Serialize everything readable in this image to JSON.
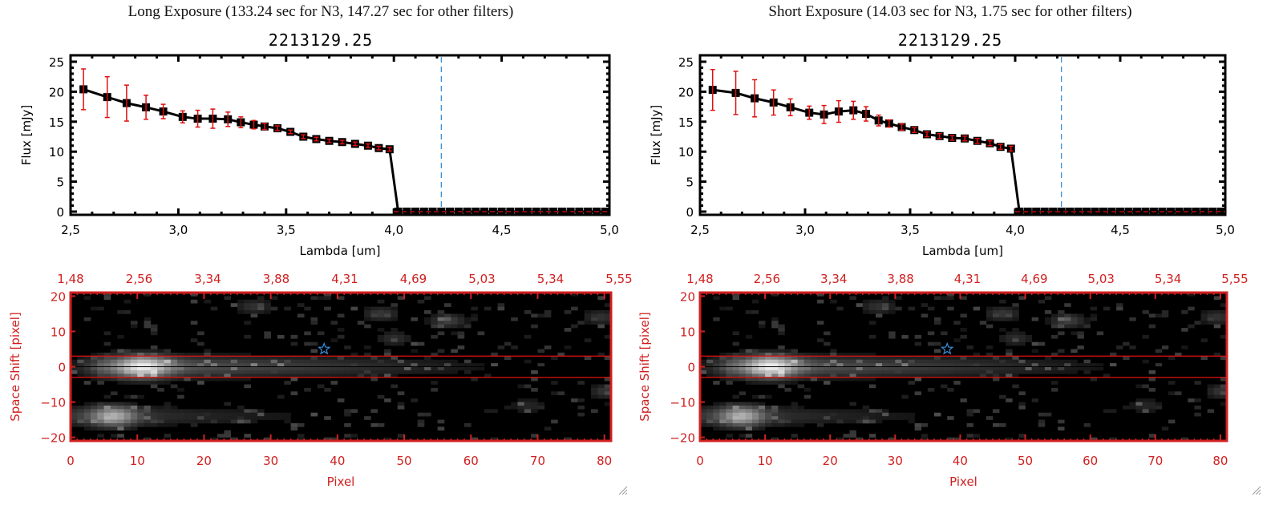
{
  "panels": [
    {
      "exposure_title": "Long Exposure (133.24 sec for N3, 147.27 sec for other filters)",
      "object_title": "2213129.25"
    },
    {
      "exposure_title": "Short Exposure (14.03 sec for N3, 1.75 sec for other filters)",
      "object_title": "2213129.25"
    }
  ],
  "colors": {
    "line": "#000000",
    "errorbar": "#e01010",
    "cutoff_marker": "#3a8fde",
    "zero_line": "#e01010",
    "image_axis": "#d02020",
    "star": "#3a8fde"
  },
  "chart_data": [
    {
      "type": "line",
      "title": "2213129.25",
      "subtitle": "Long Exposure (133.24 sec for N3, 147.27 sec for other filters)",
      "xlabel": "Lambda [um]",
      "ylabel": "Flux [mJy]",
      "xlim": [
        2.5,
        5.0
      ],
      "ylim": [
        0,
        25
      ],
      "xticks": [
        "2.5",
        "3.0",
        "3.5",
        "4.0",
        "4.5",
        "5.0"
      ],
      "yticks": [
        "0",
        "5",
        "10",
        "15",
        "20",
        "25"
      ],
      "vline_x": 4.22,
      "series": [
        {
          "name": "Flux",
          "x": [
            2.56,
            2.67,
            2.76,
            2.85,
            2.93,
            3.02,
            3.09,
            3.16,
            3.23,
            3.29,
            3.35,
            3.4,
            3.46,
            3.52,
            3.58,
            3.64,
            3.7,
            3.76,
            3.82,
            3.88,
            3.93,
            3.98,
            4.02,
            4.06,
            4.1,
            4.14,
            4.18,
            4.22,
            4.26,
            4.3,
            4.34,
            4.38,
            4.42,
            4.46,
            4.5,
            4.54,
            4.58,
            4.62,
            4.66,
            4.7,
            4.74,
            4.78,
            4.82,
            4.86,
            4.9,
            4.94,
            4.98
          ],
          "y": [
            20.4,
            19.1,
            18.1,
            17.4,
            16.7,
            15.8,
            15.5,
            15.5,
            15.4,
            14.9,
            14.5,
            14.2,
            13.9,
            13.3,
            12.5,
            12.1,
            11.8,
            11.6,
            11.3,
            11.0,
            10.6,
            10.4,
            0,
            0,
            0,
            0,
            0,
            0,
            0,
            0,
            0,
            0,
            0,
            0,
            0,
            0,
            0,
            0,
            0,
            0,
            0,
            0,
            0,
            0,
            0,
            0,
            0
          ],
          "yerr": [
            3.4,
            3.4,
            3.0,
            2.0,
            1.2,
            1.0,
            1.4,
            1.6,
            1.2,
            0.9,
            0.7,
            0.5,
            0.4,
            0.3,
            0.3,
            0.3,
            0.3,
            0.3,
            0.3,
            0.3,
            0.3,
            0.3,
            0,
            0,
            0,
            0,
            0,
            0,
            0,
            0,
            0,
            0,
            0,
            0,
            0,
            0,
            0,
            0,
            0,
            0,
            0,
            0,
            0,
            0,
            0,
            0,
            0
          ]
        }
      ]
    },
    {
      "type": "line",
      "title": "2213129.25",
      "subtitle": "Short Exposure (14.03 sec for N3, 1.75 sec for other filters)",
      "xlabel": "Lambda [um]",
      "ylabel": "Flux [mJy]",
      "xlim": [
        2.5,
        5.0
      ],
      "ylim": [
        0,
        25
      ],
      "xticks": [
        "2.5",
        "3.0",
        "3.5",
        "4.0",
        "4.5",
        "5.0"
      ],
      "yticks": [
        "0",
        "5",
        "10",
        "15",
        "20",
        "25"
      ],
      "vline_x": 4.22,
      "series": [
        {
          "name": "Flux",
          "x": [
            2.56,
            2.67,
            2.76,
            2.85,
            2.93,
            3.02,
            3.09,
            3.16,
            3.23,
            3.29,
            3.35,
            3.4,
            3.46,
            3.52,
            3.58,
            3.64,
            3.7,
            3.76,
            3.82,
            3.88,
            3.93,
            3.98,
            4.02,
            4.06,
            4.1,
            4.14,
            4.18,
            4.22,
            4.26,
            4.3,
            4.34,
            4.38,
            4.42,
            4.46,
            4.5,
            4.54,
            4.58,
            4.62,
            4.66,
            4.7,
            4.74,
            4.78,
            4.82,
            4.86,
            4.9,
            4.94,
            4.98
          ],
          "y": [
            20.3,
            19.8,
            18.9,
            18.2,
            17.4,
            16.5,
            16.2,
            16.7,
            16.9,
            16.3,
            15.2,
            14.7,
            14.1,
            13.6,
            12.9,
            12.6,
            12.3,
            12.2,
            11.8,
            11.4,
            10.8,
            10.5,
            0,
            0,
            0,
            0,
            0,
            0,
            0,
            0,
            0,
            0,
            0,
            0,
            0,
            0,
            0,
            0,
            0,
            0,
            0,
            0,
            0,
            0,
            0,
            0,
            0
          ],
          "yerr": [
            3.4,
            3.6,
            3.1,
            2.1,
            1.4,
            1.1,
            1.5,
            1.8,
            1.5,
            1.2,
            0.9,
            0.6,
            0.5,
            0.4,
            0.4,
            0.4,
            0.4,
            0.4,
            0.4,
            0.4,
            0.4,
            0.4,
            0,
            0,
            0,
            0,
            0,
            0,
            0,
            0,
            0,
            0,
            0,
            0,
            0,
            0,
            0,
            0,
            0,
            0,
            0,
            0,
            0,
            0,
            0,
            0,
            0
          ]
        }
      ]
    },
    {
      "type": "heatmap",
      "xlabel": "Pixel",
      "ylabel": "Space Shift [pixel]",
      "xlim": [
        0,
        81
      ],
      "ylim": [
        -21,
        21
      ],
      "xticks": [
        "0",
        "10",
        "20",
        "30",
        "40",
        "50",
        "60",
        "70",
        "80"
      ],
      "yticks": [
        "-20",
        "-10",
        "0",
        "10",
        "20"
      ],
      "top_ticks": [
        "1.48",
        "2.56",
        "3.34",
        "3.88",
        "4.31",
        "4.69",
        "5.03",
        "5.34",
        "5.55"
      ],
      "aperture_lines": [
        3,
        -3
      ],
      "center_line": 0,
      "star_marker": {
        "x": 38,
        "y": 5
      }
    },
    {
      "type": "heatmap",
      "xlabel": "Pixel",
      "ylabel": "Space Shift [pixel]",
      "xlim": [
        0,
        81
      ],
      "ylim": [
        -21,
        21
      ],
      "xticks": [
        "0",
        "10",
        "20",
        "30",
        "40",
        "50",
        "60",
        "70",
        "80"
      ],
      "yticks": [
        "-20",
        "-10",
        "0",
        "10",
        "20"
      ],
      "top_ticks": [
        "1.48",
        "2.56",
        "3.34",
        "3.88",
        "4.31",
        "4.69",
        "5.03",
        "5.34",
        "5.55"
      ],
      "aperture_lines": [
        3,
        -3
      ],
      "center_line": 0,
      "star_marker": {
        "x": 38,
        "y": 5
      }
    }
  ]
}
